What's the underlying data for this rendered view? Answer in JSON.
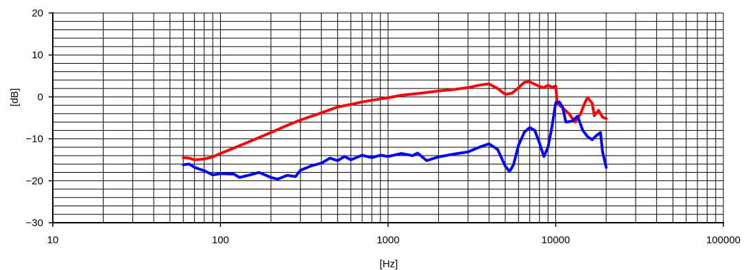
{
  "chart_data": {
    "type": "line",
    "title": "",
    "xlabel": "[Hz]",
    "ylabel": "[dB]",
    "xscale": "log",
    "xlim": [
      10,
      100000
    ],
    "ylim": [
      -30,
      20
    ],
    "grid": true,
    "legend": "none",
    "x_ticks": [
      10,
      100,
      1000,
      10000,
      100000
    ],
    "x_tick_labels": [
      "10",
      "100",
      "1000",
      "10000",
      "100000"
    ],
    "y_ticks": [
      20,
      10,
      0,
      -10,
      -20,
      -30
    ],
    "y_tick_labels": [
      "20",
      "10",
      "0",
      "−10",
      "−20",
      "−30"
    ],
    "series": [
      {
        "color": "#ff0000",
        "points": [
          [
            60,
            -14.5
          ],
          [
            65,
            -14.6
          ],
          [
            70,
            -15.0
          ],
          [
            80,
            -14.8
          ],
          [
            90,
            -14.3
          ],
          [
            100,
            -13.5
          ],
          [
            120,
            -12.2
          ],
          [
            150,
            -10.6
          ],
          [
            200,
            -8.5
          ],
          [
            250,
            -6.8
          ],
          [
            300,
            -5.5
          ],
          [
            400,
            -3.8
          ],
          [
            500,
            -2.4
          ],
          [
            600,
            -1.8
          ],
          [
            700,
            -1.2
          ],
          [
            800,
            -0.8
          ],
          [
            1000,
            -0.2
          ],
          [
            1200,
            0.4
          ],
          [
            1500,
            0.8
          ],
          [
            2000,
            1.4
          ],
          [
            2500,
            1.8
          ],
          [
            3000,
            2.2
          ],
          [
            3500,
            2.8
          ],
          [
            4000,
            3.1
          ],
          [
            4500,
            2.0
          ],
          [
            5000,
            0.6
          ],
          [
            5500,
            0.9
          ],
          [
            6000,
            2.2
          ],
          [
            6500,
            3.5
          ],
          [
            7000,
            3.6
          ],
          [
            7500,
            3.0
          ],
          [
            8000,
            2.5
          ],
          [
            8500,
            2.2
          ],
          [
            9000,
            2.8
          ],
          [
            9500,
            2.3
          ],
          [
            10000,
            2.6
          ],
          [
            10200,
            -1.5
          ],
          [
            11000,
            -2.6
          ],
          [
            12000,
            -4.0
          ],
          [
            13000,
            -6.0
          ],
          [
            14000,
            -4.2
          ],
          [
            15000,
            -1.2
          ],
          [
            15500,
            -0.2
          ],
          [
            16500,
            -1.5
          ],
          [
            17000,
            -4.5
          ],
          [
            18000,
            -3.2
          ],
          [
            19000,
            -4.8
          ],
          [
            20000,
            -5.2
          ]
        ]
      },
      {
        "color": "#0000ff",
        "points": [
          [
            60,
            -16.2
          ],
          [
            65,
            -16.0
          ],
          [
            70,
            -16.8
          ],
          [
            80,
            -17.6
          ],
          [
            90,
            -18.6
          ],
          [
            100,
            -18.3
          ],
          [
            120,
            -18.4
          ],
          [
            130,
            -19.2
          ],
          [
            150,
            -18.6
          ],
          [
            170,
            -18.0
          ],
          [
            200,
            -19.2
          ],
          [
            220,
            -19.6
          ],
          [
            250,
            -18.7
          ],
          [
            280,
            -19.0
          ],
          [
            300,
            -17.5
          ],
          [
            350,
            -16.4
          ],
          [
            400,
            -15.8
          ],
          [
            450,
            -14.6
          ],
          [
            500,
            -15.2
          ],
          [
            550,
            -14.2
          ],
          [
            600,
            -15.0
          ],
          [
            700,
            -13.9
          ],
          [
            800,
            -14.5
          ],
          [
            900,
            -13.9
          ],
          [
            1000,
            -14.2
          ],
          [
            1200,
            -13.5
          ],
          [
            1400,
            -14.0
          ],
          [
            1500,
            -13.4
          ],
          [
            1700,
            -15.2
          ],
          [
            2000,
            -14.3
          ],
          [
            2500,
            -13.6
          ],
          [
            3000,
            -13.1
          ],
          [
            3500,
            -12.0
          ],
          [
            4000,
            -11.2
          ],
          [
            4500,
            -12.5
          ],
          [
            5000,
            -16.5
          ],
          [
            5300,
            -17.8
          ],
          [
            5600,
            -16.2
          ],
          [
            6000,
            -11.5
          ],
          [
            6500,
            -8.4
          ],
          [
            7000,
            -7.3
          ],
          [
            7500,
            -8.0
          ],
          [
            8000,
            -11.0
          ],
          [
            8500,
            -14.2
          ],
          [
            9000,
            -12.0
          ],
          [
            9500,
            -7.0
          ],
          [
            10000,
            -1.4
          ],
          [
            10500,
            -1.2
          ],
          [
            11000,
            -2.5
          ],
          [
            11500,
            -6.0
          ],
          [
            12500,
            -5.8
          ],
          [
            13500,
            -4.6
          ],
          [
            14500,
            -8.0
          ],
          [
            15500,
            -9.5
          ],
          [
            16500,
            -10.2
          ],
          [
            17500,
            -9.2
          ],
          [
            18500,
            -8.5
          ],
          [
            19000,
            -13.0
          ],
          [
            20000,
            -16.8
          ]
        ]
      }
    ]
  }
}
